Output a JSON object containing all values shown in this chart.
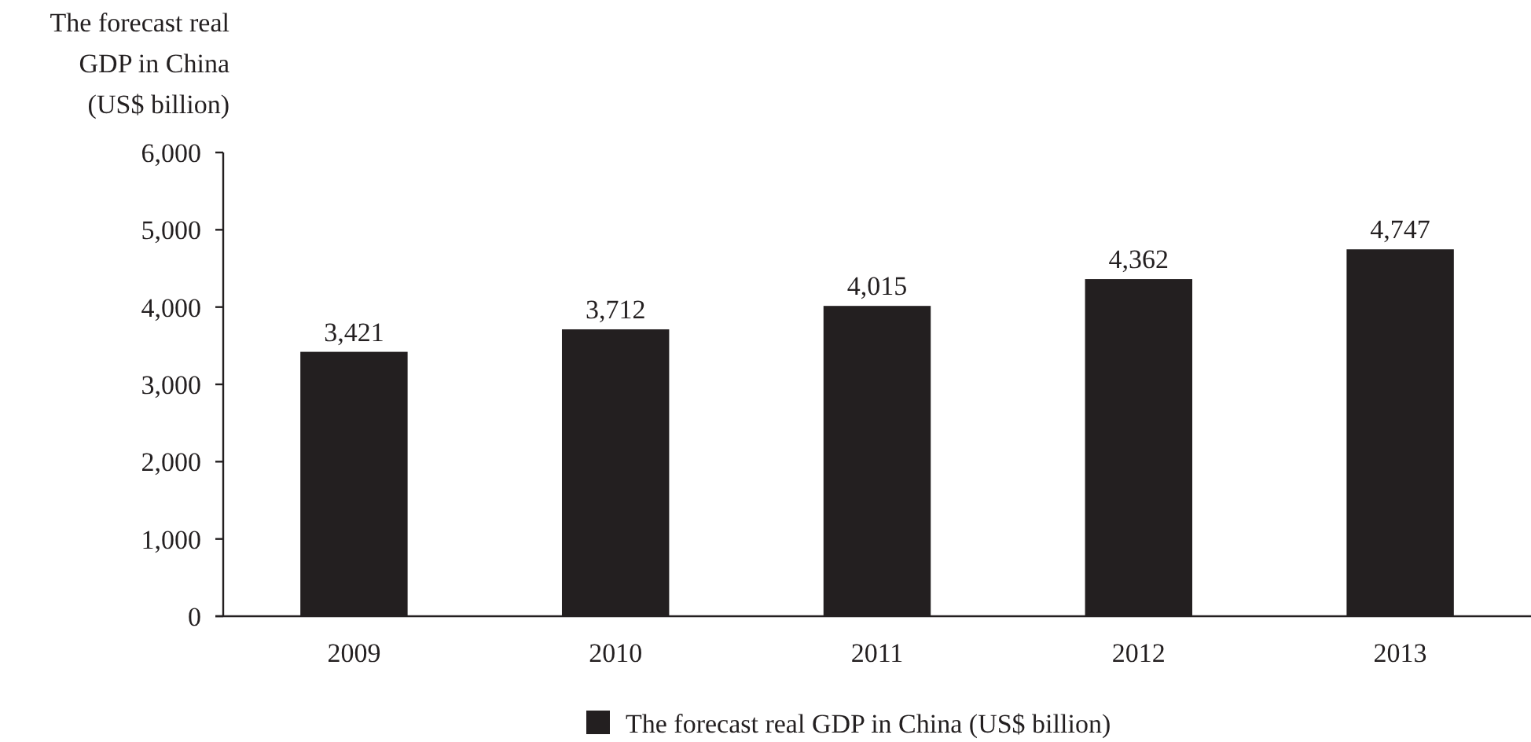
{
  "chart_data": {
    "type": "bar",
    "ylabel": "The forecast real\nGDP in China\n(US$ billion)",
    "categories": [
      "2009",
      "2010",
      "2011",
      "2012",
      "2013"
    ],
    "series": [
      {
        "name": "The forecast real GDP in China (US$ billion)",
        "color": "#231f20",
        "values": [
          3421,
          3712,
          4015,
          4362,
          4747
        ],
        "value_labels": [
          "3,421",
          "3,712",
          "4,015",
          "4,362",
          "4,747"
        ]
      }
    ],
    "ylim": [
      0,
      6000
    ],
    "yticks": [
      0,
      {
        "value": 1000,
        "label": "1,000"
      },
      {
        "value": 2000,
        "label": "2,000"
      },
      {
        "value": 3000,
        "label": "3,000"
      },
      {
        "value": 4000,
        "label": "4,000"
      },
      {
        "value": 5000,
        "label": "5,000"
      },
      {
        "value": 6000,
        "label": "6,000"
      }
    ],
    "grid": false,
    "legend": "bottom"
  }
}
